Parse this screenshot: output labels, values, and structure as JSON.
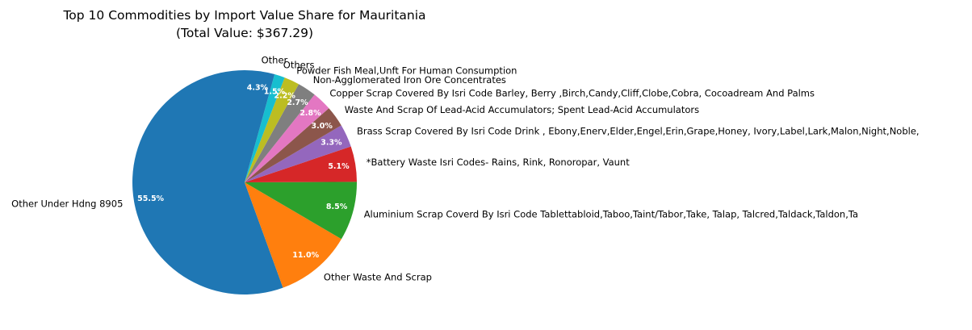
{
  "chart_data": {
    "type": "pie",
    "title": "Top 10 Commodities by Import Value Share for Mauritania",
    "subtitle": "(Total Value: $367.29)",
    "start_angle_deg": 90,
    "direction": "counterclockwise",
    "slices": [
      {
        "label": "Other Under Hdng 8905",
        "value": 55.5,
        "pct_label": "55.5%",
        "color": "#1f77b4"
      },
      {
        "label": "Other Waste And Scrap",
        "value": 11.0,
        "pct_label": "11.0%",
        "color": "#ff7f0e"
      },
      {
        "label": "Aluminium Scrap Coverd By Isri Code Tablettabloid,Taboo,Taint/Tabor,Take, Talap, Talcred,Taldack,Taldon,Ta",
        "value": 8.5,
        "pct_label": "8.5%",
        "color": "#2ca02c"
      },
      {
        "label": "*Battery Waste Isri Codes- Rains, Rink, Ronoropar, Vaunt",
        "value": 5.1,
        "pct_label": "5.1%",
        "color": "#d62728"
      },
      {
        "label": "Brass Scrap Covered By Isri Code Drink , Ebony,Enerv,Elder,Engel,Erin,Grape,Honey, Ivory,Label,Lark,Malon,Night,Noble,",
        "value": 3.3,
        "pct_label": "3.3%",
        "color": "#9467bd"
      },
      {
        "label": "Waste And Scrap Of Lead-Acid Accumulators; Spent Lead-Acid Accumulators",
        "value": 3.0,
        "pct_label": "3.0%",
        "color": "#8c564b"
      },
      {
        "label": "Copper Scrap Covered By Isri Code Barley, Berry ,Birch,Candy,Cliff,Clobe,Cobra, Cocoadream And Palms",
        "value": 2.8,
        "pct_label": "2.8%",
        "color": "#e377c2"
      },
      {
        "label": "Non-Agglomerated Iron Ore Concentrates",
        "value": 2.7,
        "pct_label": "2.7%",
        "color": "#7f7f7f"
      },
      {
        "label": "Powder Fish Meal,Unft For Human Consumption",
        "value": 2.2,
        "pct_label": "2.2%",
        "color": "#bcbd22"
      },
      {
        "label": "Others",
        "value": 1.5,
        "pct_label": "1.5%",
        "color": "#17becf"
      },
      {
        "label": "Other",
        "value": 4.3,
        "pct_label": "4.3%",
        "color": "#1f77b4"
      }
    ]
  }
}
